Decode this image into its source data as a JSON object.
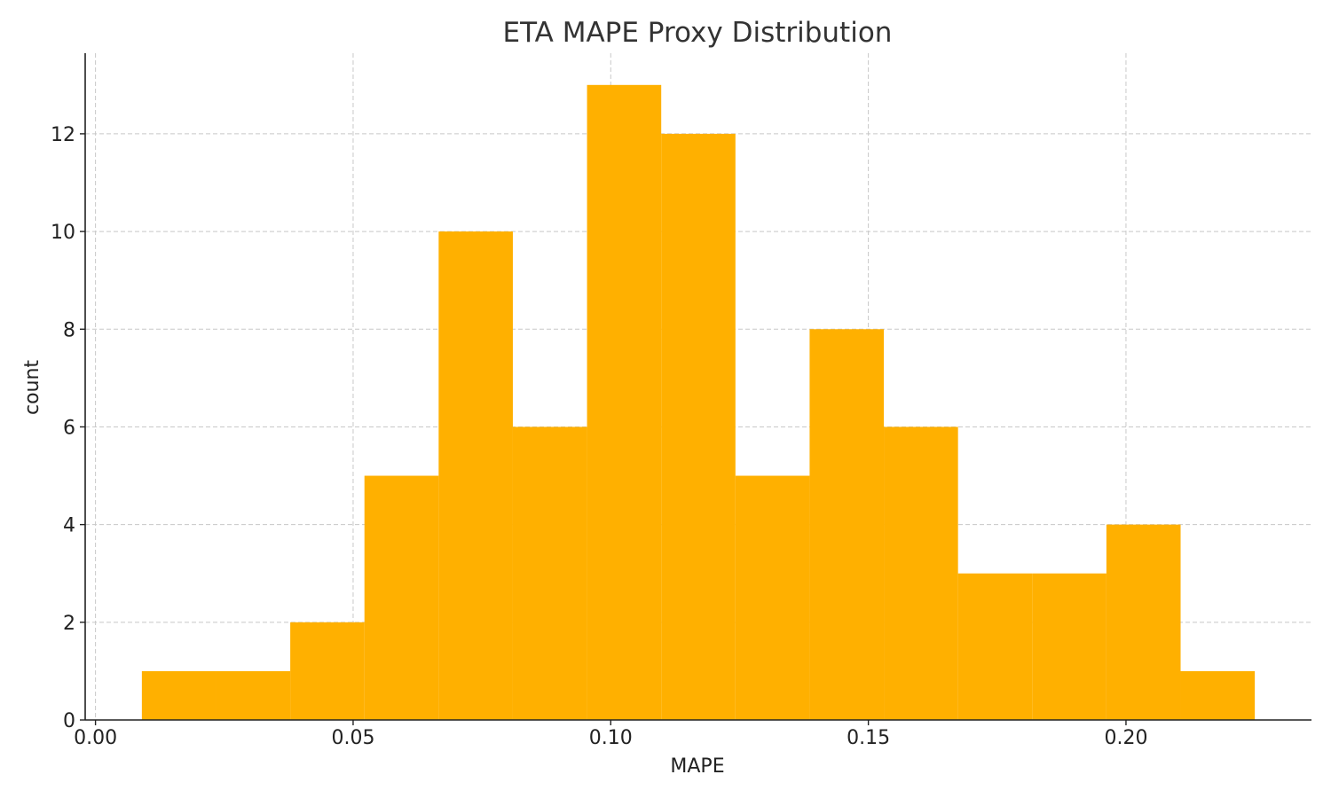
{
  "chart_data": {
    "type": "bar",
    "title": "ETA MAPE Proxy Distribution",
    "xlabel": "MAPE",
    "ylabel": "count",
    "bin_edges": [
      0.009,
      0.0234,
      0.0378,
      0.0522,
      0.0666,
      0.081,
      0.0954,
      0.1098,
      0.1242,
      0.1386,
      0.153,
      0.1674,
      0.1818,
      0.1962,
      0.2106,
      0.225
    ],
    "values": [
      1,
      1,
      2,
      5,
      10,
      6,
      13,
      12,
      5,
      8,
      6,
      3,
      3,
      4,
      1
    ],
    "xlim": [
      -0.002,
      0.236
    ],
    "ylim": [
      0,
      13.65
    ],
    "x_ticks": [
      0.0,
      0.05,
      0.1,
      0.15,
      0.2
    ],
    "x_tick_labels": [
      "0.00",
      "0.05",
      "0.10",
      "0.15",
      "0.20"
    ],
    "y_ticks": [
      0,
      2,
      4,
      6,
      8,
      10,
      12
    ],
    "y_tick_labels": [
      "0",
      "2",
      "4",
      "6",
      "8",
      "10",
      "12"
    ],
    "grid": true,
    "bar_color": "#FFB000"
  }
}
